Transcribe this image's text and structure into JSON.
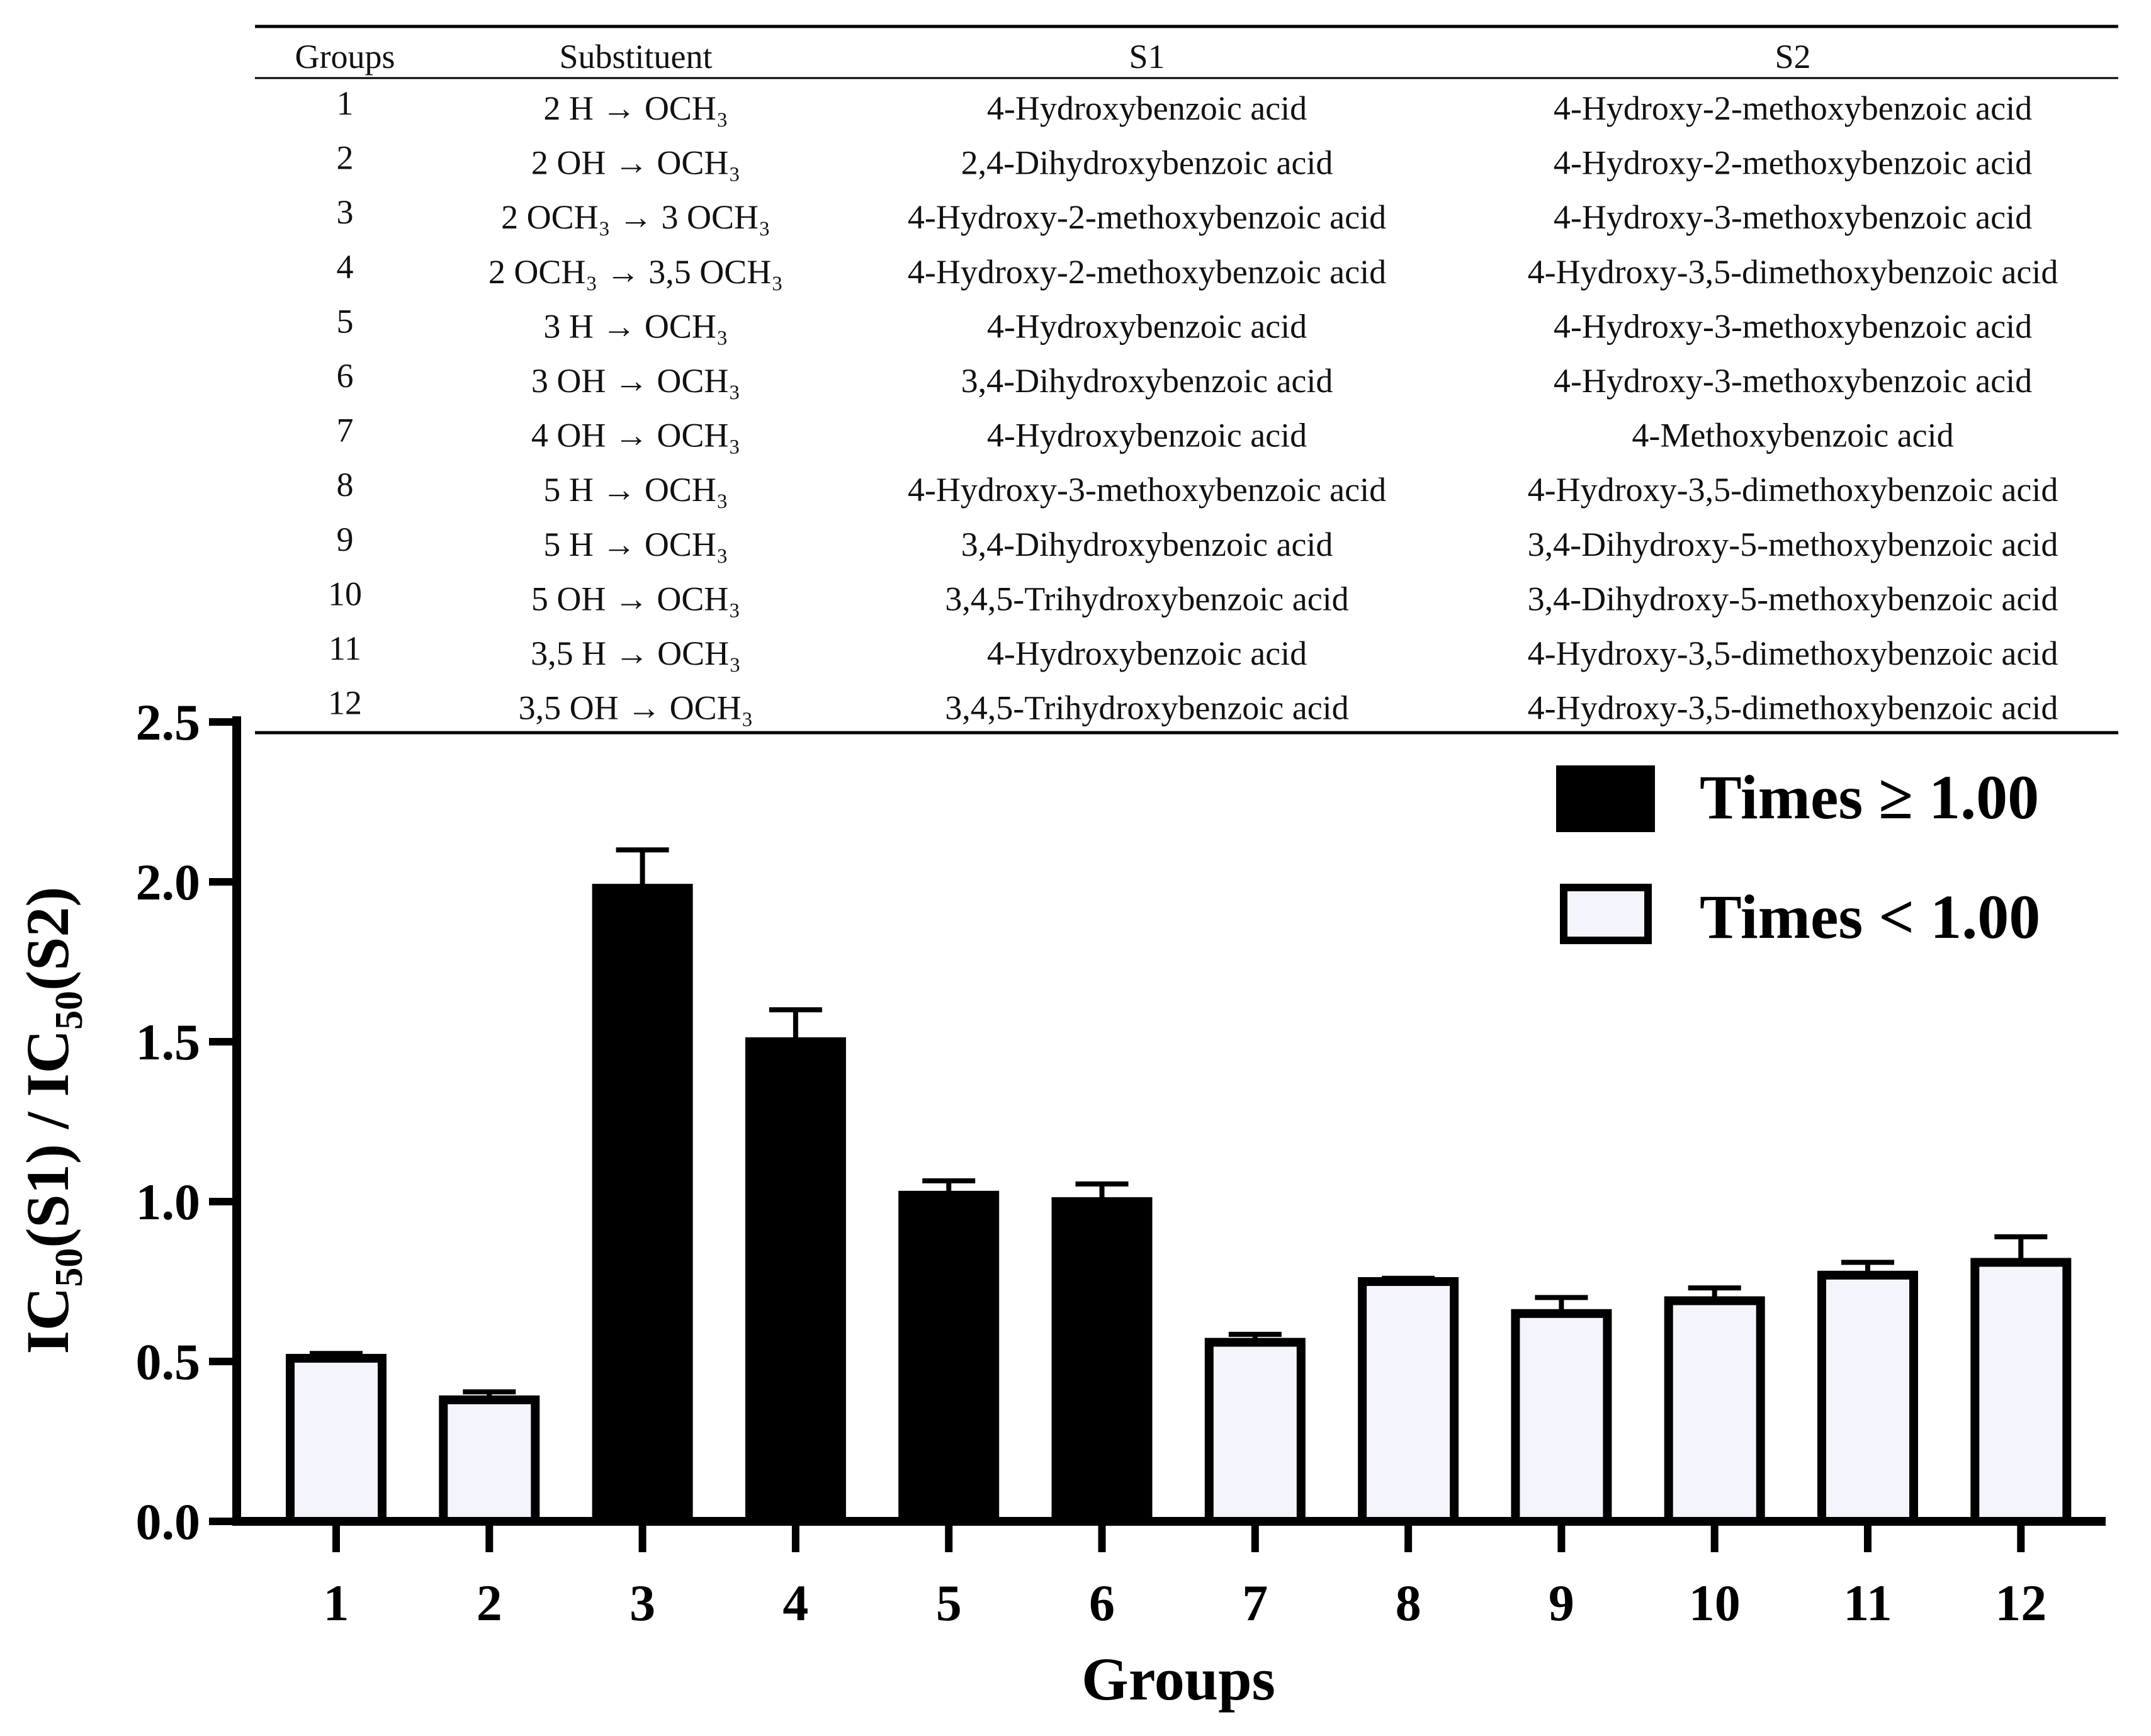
{
  "table": {
    "headers": [
      "Groups",
      "Substituent",
      "S1",
      "S2"
    ],
    "rows": [
      {
        "group": "1",
        "substituent": "2 H → OCH₃",
        "s1": "4-Hydroxybenzoic acid",
        "s2": "4-Hydroxy-2-methoxybenzoic acid"
      },
      {
        "group": "2",
        "substituent": "2 OH → OCH₃",
        "s1": "2,4-Dihydroxybenzoic acid",
        "s2": "4-Hydroxy-2-methoxybenzoic acid"
      },
      {
        "group": "3",
        "substituent": "2 OCH₃ → 3 OCH₃",
        "s1": "4-Hydroxy-2-methoxybenzoic acid",
        "s2": "4-Hydroxy-3-methoxybenzoic acid"
      },
      {
        "group": "4",
        "substituent": "2 OCH₃ → 3,5 OCH₃",
        "s1": "4-Hydroxy-2-methoxybenzoic acid",
        "s2": "4-Hydroxy-3,5-dimethoxybenzoic acid"
      },
      {
        "group": "5",
        "substituent": "3 H → OCH₃",
        "s1": "4-Hydroxybenzoic acid",
        "s2": "4-Hydroxy-3-methoxybenzoic acid"
      },
      {
        "group": "6",
        "substituent": "3 OH → OCH₃",
        "s1": "3,4-Dihydroxybenzoic acid",
        "s2": "4-Hydroxy-3-methoxybenzoic acid"
      },
      {
        "group": "7",
        "substituent": "4 OH → OCH₃",
        "s1": "4-Hydroxybenzoic acid",
        "s2": "4-Methoxybenzoic acid"
      },
      {
        "group": "8",
        "substituent": "5 H → OCH₃",
        "s1": "4-Hydroxy-3-methoxybenzoic acid",
        "s2": "4-Hydroxy-3,5-dimethoxybenzoic acid"
      },
      {
        "group": "9",
        "substituent": "5 H → OCH₃",
        "s1": "3,4-Dihydroxybenzoic acid",
        "s2": "3,4-Dihydroxy-5-methoxybenzoic acid"
      },
      {
        "group": "10",
        "substituent": "5 OH → OCH₃",
        "s1": "3,4,5-Trihydroxybenzoic acid",
        "s2": "3,4-Dihydroxy-5-methoxybenzoic acid"
      },
      {
        "group": "11",
        "substituent": "3,5 H → OCH₃",
        "s1": "4-Hydroxybenzoic acid",
        "s2": "4-Hydroxy-3,5-dimethoxybenzoic acid"
      },
      {
        "group": "12",
        "substituent": "3,5 OH → OCH₃",
        "s1": "3,4,5-Trihydroxybenzoic acid",
        "s2": "4-Hydroxy-3,5-dimethoxybenzoic acid"
      }
    ]
  },
  "chart_data": {
    "type": "bar",
    "xlabel": "Groups",
    "ylabel_parts": [
      "IC",
      "50",
      "(S1) / IC",
      "50",
      "(S2)"
    ],
    "categories": [
      "1",
      "2",
      "3",
      "4",
      "5",
      "6",
      "7",
      "8",
      "9",
      "10",
      "11",
      "12"
    ],
    "values": [
      0.51,
      0.38,
      1.98,
      1.5,
      1.02,
      1.0,
      0.56,
      0.75,
      0.65,
      0.69,
      0.77,
      0.81
    ],
    "errors": [
      0.015,
      0.025,
      0.12,
      0.1,
      0.045,
      0.055,
      0.025,
      0.01,
      0.05,
      0.04,
      0.04,
      0.08
    ],
    "classes": [
      "low",
      "low",
      "high",
      "high",
      "high",
      "high",
      "low",
      "low",
      "low",
      "low",
      "low",
      "low"
    ],
    "ylim": [
      0,
      2.5
    ],
    "yticks": [
      "0.0",
      "0.5",
      "1.0",
      "1.5",
      "2.0",
      "2.5"
    ],
    "legend": [
      {
        "key": "high",
        "label": "Times ≥ 1.00"
      },
      {
        "key": "low",
        "label": "Times < 1.00"
      }
    ],
    "legend_position": "top-right",
    "colors": {
      "high": "#000000",
      "low": "#f4f5fc",
      "stroke": "#000000"
    }
  }
}
